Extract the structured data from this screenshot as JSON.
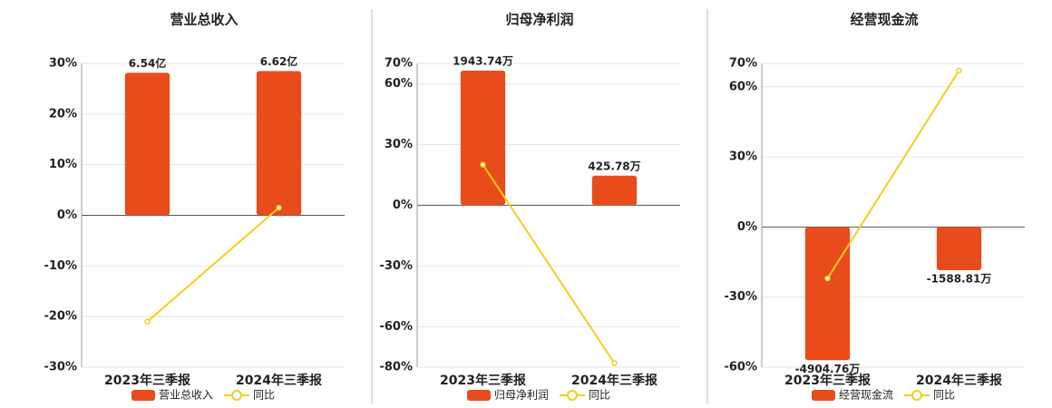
{
  "chart_data": [
    {
      "type": "bar-line",
      "title": "营业总收入",
      "categories": [
        "2023年三季报",
        "2024年三季报"
      ],
      "series": [
        {
          "name": "营业总收入",
          "type": "bar",
          "color": "#e84c1a",
          "values": [
            6.54,
            6.62
          ],
          "value_labels": [
            "6.54亿",
            "6.62亿"
          ]
        },
        {
          "name": "同比",
          "type": "line",
          "color": "#f2cf1d",
          "values": [
            -21,
            1.5
          ]
        }
      ],
      "ylim": [
        -30,
        30
      ],
      "yticks": [
        {
          "value": 30,
          "label": "30%"
        },
        {
          "value": 20,
          "label": "20%"
        },
        {
          "value": 10,
          "label": "10%"
        },
        {
          "value": 0,
          "label": "0%"
        },
        {
          "value": -10,
          "label": "-10%"
        },
        {
          "value": -20,
          "label": "-20%"
        },
        {
          "value": -30,
          "label": "-30%"
        }
      ],
      "grid": true
    },
    {
      "type": "bar-line",
      "title": "归母净利润",
      "categories": [
        "2023年三季报",
        "2024年三季报"
      ],
      "series": [
        {
          "name": "归母净利润",
          "type": "bar",
          "color": "#e84c1a",
          "values": [
            1943.74,
            425.78
          ],
          "value_labels": [
            "1943.74万",
            "425.78万"
          ]
        },
        {
          "name": "同比",
          "type": "line",
          "color": "#f2cf1d",
          "values": [
            20,
            -78
          ]
        }
      ],
      "ylim": [
        -80,
        70
      ],
      "yticks": [
        {
          "value": 70,
          "label": "70%"
        },
        {
          "value": 60,
          "label": "60%"
        },
        {
          "value": 30,
          "label": "30%"
        },
        {
          "value": 0,
          "label": "0%"
        },
        {
          "value": -30,
          "label": "-30%"
        },
        {
          "value": -60,
          "label": "-60%"
        },
        {
          "value": -80,
          "label": "-80%"
        }
      ],
      "grid": true
    },
    {
      "type": "bar-line",
      "title": "经营现金流",
      "categories": [
        "2023年三季报",
        "2024年三季报"
      ],
      "series": [
        {
          "name": "经营现金流",
          "type": "bar",
          "color": "#e84c1a",
          "values": [
            -4904.76,
            -1588.81
          ],
          "value_labels": [
            "-4904.76万",
            "-1588.81万"
          ]
        },
        {
          "name": "同比",
          "type": "line",
          "color": "#f2cf1d",
          "values": [
            -22,
            67
          ]
        }
      ],
      "ylim": [
        -60,
        70
      ],
      "yticks": [
        {
          "value": 70,
          "label": "70%"
        },
        {
          "value": 60,
          "label": "60%"
        },
        {
          "value": 30,
          "label": "30%"
        },
        {
          "value": 0,
          "label": "0%"
        },
        {
          "value": -30,
          "label": "-30%"
        },
        {
          "value": -60,
          "label": "-60%"
        }
      ],
      "grid": true
    }
  ]
}
